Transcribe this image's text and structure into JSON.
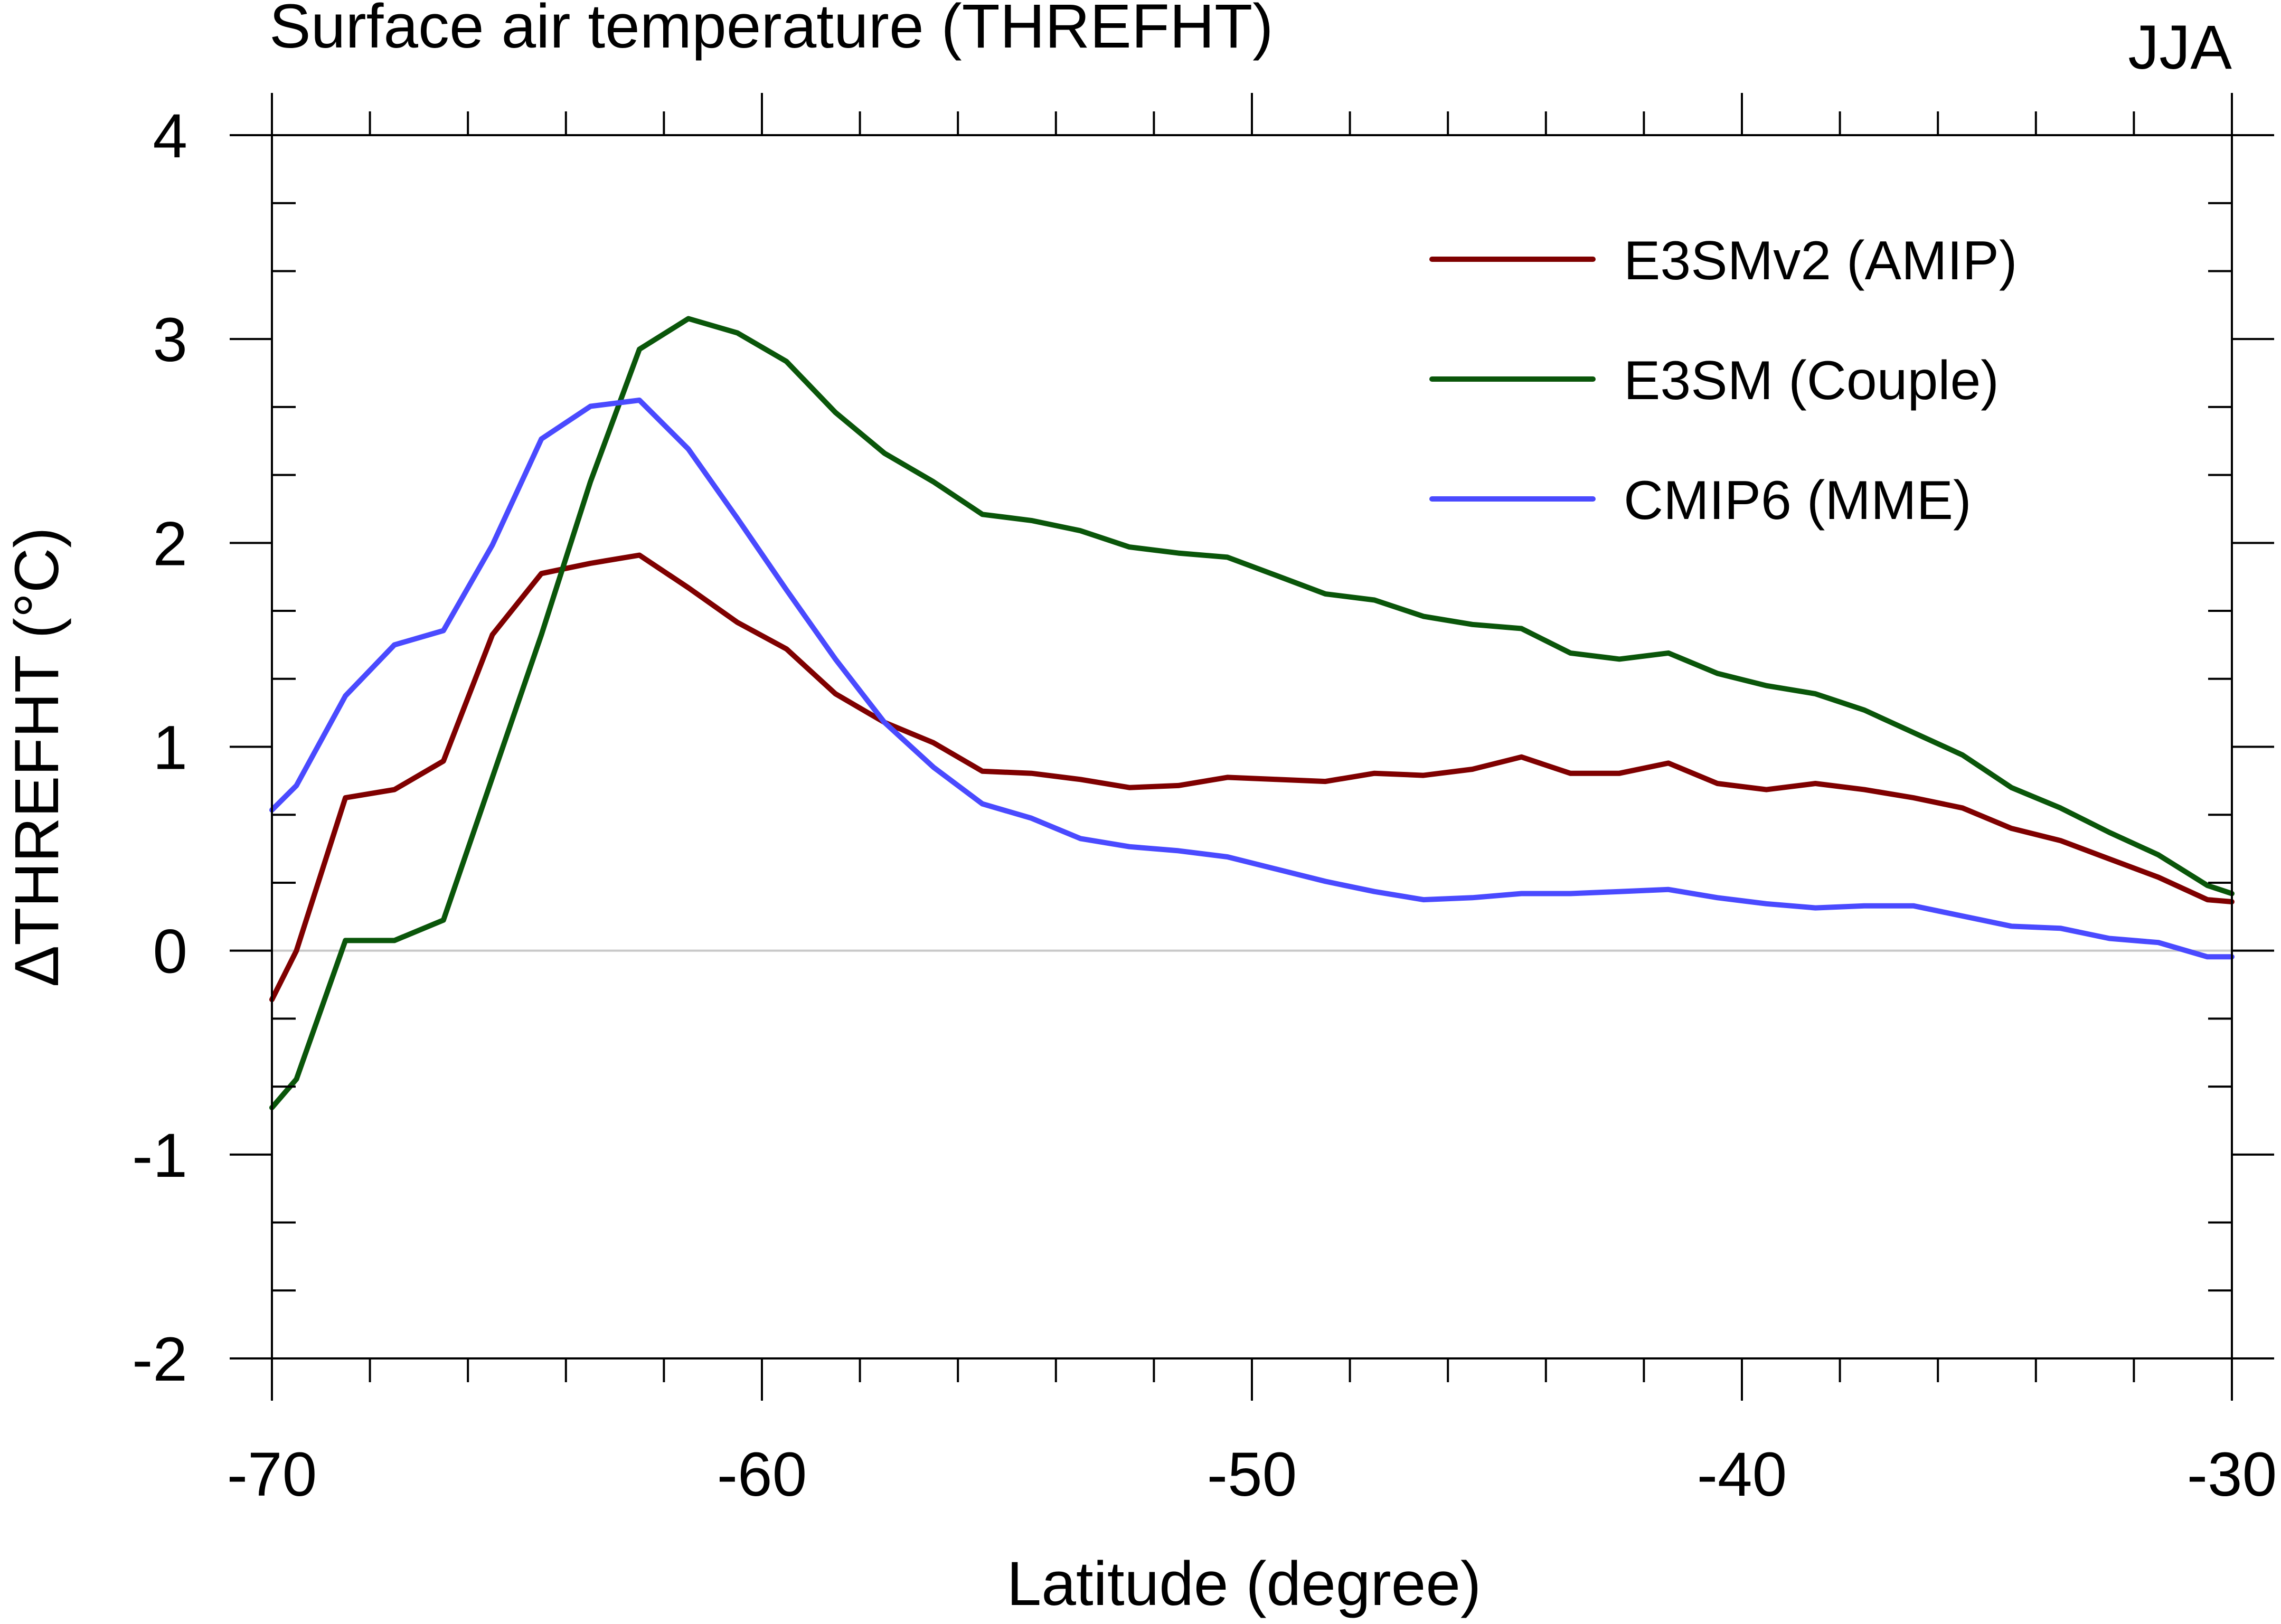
{
  "chart_data": {
    "type": "line",
    "title": "Surface air temperature (THREFHT)",
    "season": "JJA",
    "xlabel": "Latitude (degree)",
    "ylabel": "ΔTHREFHT (°C)",
    "xlim": [
      -70,
      -30
    ],
    "ylim": [
      -2,
      4
    ],
    "x_ticks": [
      -70,
      -60,
      -50,
      -40,
      -30
    ],
    "x_tick_labels": [
      "-70",
      "-60",
      "-50",
      "-40",
      "-30"
    ],
    "y_ticks": [
      -2,
      -1,
      0,
      1,
      2,
      3,
      4
    ],
    "y_tick_labels": [
      "-2",
      "-1",
      "0",
      "1",
      "2",
      "3",
      "4"
    ],
    "x_minor_step": 2,
    "y_minor_step": 0.333,
    "legend_position": "top-right",
    "x": [
      -70,
      -69.5,
      -68.5,
      -67.5,
      -66.5,
      -65.5,
      -64.5,
      -63.5,
      -62.5,
      -61.5,
      -60.5,
      -59.5,
      -58.5,
      -57.5,
      -56.5,
      -55.5,
      -54.5,
      -53.5,
      -52.5,
      -51.5,
      -50.5,
      -49.5,
      -48.5,
      -47.5,
      -46.5,
      -45.5,
      -44.5,
      -43.5,
      -42.5,
      -41.5,
      -40.5,
      -39.5,
      -38.5,
      -37.5,
      -36.5,
      -35.5,
      -34.5,
      -33.5,
      -32.5,
      -31.5,
      -30.5,
      -30
    ],
    "series": [
      {
        "name": "E3SMv2 (AMIP)",
        "color": "#7f0000",
        "values": [
          -0.24,
          0.0,
          0.75,
          0.79,
          0.93,
          1.55,
          1.85,
          1.9,
          1.94,
          1.78,
          1.61,
          1.48,
          1.26,
          1.12,
          1.02,
          0.88,
          0.87,
          0.84,
          0.8,
          0.81,
          0.85,
          0.84,
          0.83,
          0.87,
          0.86,
          0.89,
          0.95,
          0.87,
          0.87,
          0.92,
          0.82,
          0.79,
          0.82,
          0.79,
          0.75,
          0.7,
          0.6,
          0.54,
          0.45,
          0.36,
          0.25,
          0.24
        ]
      },
      {
        "name": "E3SM (Couple)",
        "color": "#0a560a",
        "values": [
          -0.77,
          -0.63,
          0.05,
          0.05,
          0.15,
          0.85,
          1.55,
          2.3,
          2.95,
          3.1,
          3.03,
          2.89,
          2.64,
          2.44,
          2.3,
          2.14,
          2.11,
          2.06,
          1.98,
          1.95,
          1.93,
          1.84,
          1.75,
          1.72,
          1.64,
          1.6,
          1.58,
          1.46,
          1.43,
          1.46,
          1.36,
          1.3,
          1.26,
          1.18,
          1.07,
          0.96,
          0.8,
          0.7,
          0.58,
          0.47,
          0.32,
          0.28
        ]
      },
      {
        "name": "CMIP6 (MME)",
        "color": "#4a4aff",
        "values": [
          0.69,
          0.81,
          1.25,
          1.5,
          1.57,
          1.99,
          2.51,
          2.67,
          2.7,
          2.46,
          2.12,
          1.77,
          1.43,
          1.12,
          0.9,
          0.72,
          0.65,
          0.55,
          0.51,
          0.49,
          0.46,
          0.4,
          0.34,
          0.29,
          0.25,
          0.26,
          0.28,
          0.28,
          0.29,
          0.3,
          0.26,
          0.23,
          0.21,
          0.22,
          0.22,
          0.17,
          0.12,
          0.11,
          0.06,
          0.04,
          -0.03,
          -0.03
        ]
      }
    ]
  }
}
